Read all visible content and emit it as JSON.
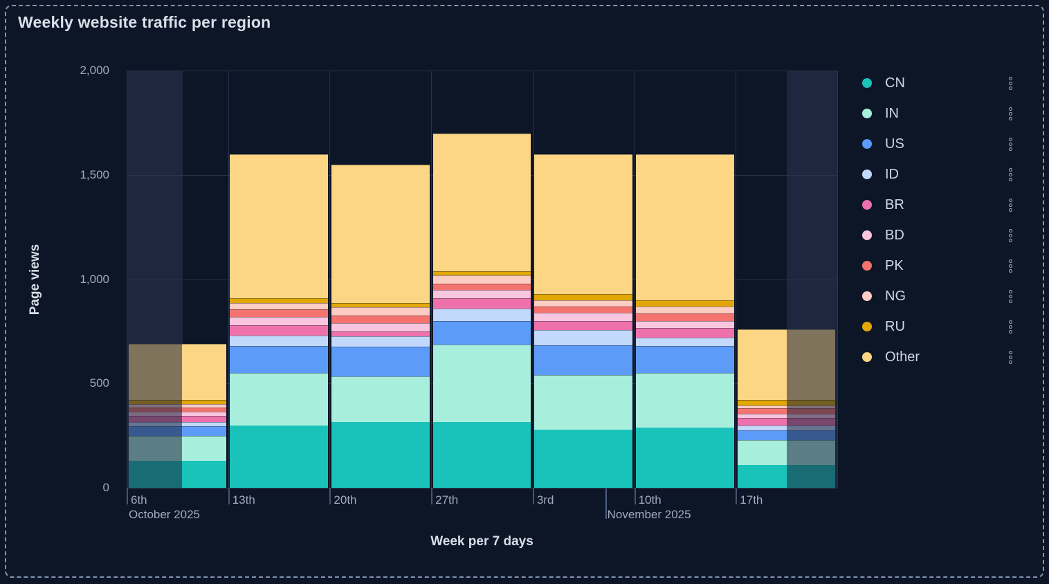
{
  "panel": {
    "title": "Weekly website traffic per region"
  },
  "colors": {
    "background": "#0d1626",
    "panel_border_dashed": "#8094b1",
    "grid": "#26334d",
    "axis_baseline": "#2e3c58",
    "tick": "#46566f",
    "axis_text": "#9fabc2",
    "title_text": "#d9dfe9",
    "legend_text": "#ced6e4",
    "out_of_range_band": "rgba(120,150,200,0.15)",
    "out_of_range_dim_overlay": "rgba(25,35,58,0.55)"
  },
  "chart_data": {
    "type": "bar",
    "stacked": true,
    "title": "Weekly website traffic per region",
    "xlabel": "Week per 7 days",
    "ylabel": "Page views",
    "ylim": [
      0,
      2000
    ],
    "ytick_values": [
      0,
      500,
      1000,
      1500,
      2000
    ],
    "ytick_labels": [
      "0",
      "500",
      "1,000",
      "1,500",
      "2,000"
    ],
    "categories": [
      "6th",
      "13th",
      "20th",
      "27th",
      "3rd",
      "10th",
      "17th"
    ],
    "month_labels": [
      {
        "label": "October 2025",
        "position_weeks": 0,
        "tick": false
      },
      {
        "label": "November 2025",
        "position_weeks": 4.714,
        "tick": true
      }
    ],
    "series": [
      {
        "name": "CN",
        "color": "#19c3ba",
        "values": [
          130,
          300,
          315,
          315,
          280,
          290,
          110
        ]
      },
      {
        "name": "IN",
        "color": "#a8eedd",
        "values": [
          120,
          250,
          220,
          370,
          260,
          260,
          120
        ]
      },
      {
        "name": "US",
        "color": "#5c9cf8",
        "values": [
          45,
          130,
          140,
          115,
          145,
          130,
          45
        ]
      },
      {
        "name": "ID",
        "color": "#c3d9fb",
        "values": [
          20,
          50,
          50,
          60,
          70,
          40,
          25
        ]
      },
      {
        "name": "BR",
        "color": "#ee71ab",
        "values": [
          30,
          50,
          25,
          50,
          45,
          45,
          35
        ]
      },
      {
        "name": "BD",
        "color": "#fac5de",
        "values": [
          20,
          40,
          40,
          40,
          40,
          35,
          20
        ]
      },
      {
        "name": "PK",
        "color": "#f4736e",
        "values": [
          20,
          35,
          35,
          30,
          30,
          35,
          25
        ]
      },
      {
        "name": "NG",
        "color": "#fdccc3",
        "values": [
          15,
          30,
          40,
          40,
          30,
          35,
          15
        ]
      },
      {
        "name": "RU",
        "color": "#e2a705",
        "values": [
          20,
          25,
          20,
          20,
          30,
          30,
          25
        ]
      },
      {
        "name": "Other",
        "color": "#fcd685",
        "values": [
          270,
          690,
          665,
          660,
          670,
          700,
          340
        ]
      }
    ],
    "totals": [
      690,
      1600,
      1550,
      1700,
      1600,
      1600,
      760
    ],
    "partial_weeks": {
      "first_bar_dim_left_fraction": 0.55,
      "last_bar_dim_right_fraction": 0.5
    },
    "grid": true,
    "legend_position": "right"
  }
}
